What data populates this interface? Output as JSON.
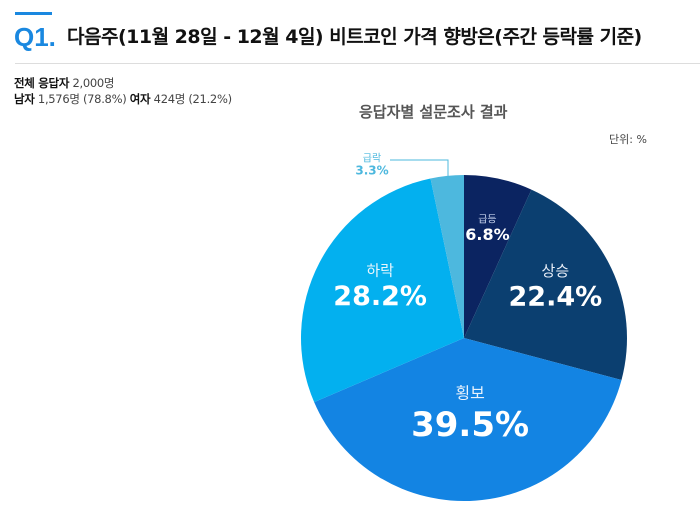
{
  "header": {
    "qnum": "Q1.",
    "title": "다음주(11월 28일 - 12월 4일)  비트코인 가격 향방은(주간 등락률 기준)"
  },
  "respondents": {
    "total_label": "전체 응답자",
    "total_value": "2,000명",
    "male_label": "남자",
    "male_value": "1,576명 (78.8%)",
    "female_label": "여자",
    "female_value": "424명 (21.2%)"
  },
  "chart_data": {
    "type": "pie",
    "title": "응답자별 설문조사 결과",
    "unit": "단위: %",
    "start": "top, clockwise",
    "slices": [
      {
        "label": "급등",
        "value": 6.8,
        "color": "#0b2461"
      },
      {
        "label": "상승",
        "value": 22.4,
        "color": "#0b3f70"
      },
      {
        "label": "횡보",
        "value": 39.5,
        "color": "#1384e3"
      },
      {
        "label": "하락",
        "value": 28.2,
        "color": "#03b0ef"
      },
      {
        "label": "급락",
        "value": 3.3,
        "color": "#4db8de"
      }
    ]
  }
}
